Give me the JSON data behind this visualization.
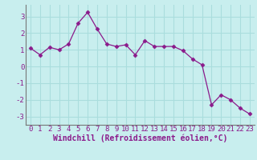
{
  "x": [
    0,
    1,
    2,
    3,
    4,
    5,
    6,
    7,
    8,
    9,
    10,
    11,
    12,
    13,
    14,
    15,
    16,
    17,
    18,
    19,
    20,
    21,
    22,
    23
  ],
  "y": [
    1.1,
    0.7,
    1.15,
    1.0,
    1.35,
    2.6,
    3.25,
    2.25,
    1.35,
    1.2,
    1.3,
    0.7,
    1.55,
    1.2,
    1.2,
    1.2,
    0.95,
    0.45,
    0.1,
    -2.3,
    -1.7,
    -2.0,
    -2.5,
    -2.85
  ],
  "line_color": "#8b1a8b",
  "marker": "D",
  "marker_size": 2.5,
  "xlabel": "Windchill (Refroidissement éolien,°C)",
  "xlim": [
    -0.5,
    23.5
  ],
  "ylim": [
    -3.5,
    3.7
  ],
  "yticks": [
    -3,
    -2,
    -1,
    0,
    1,
    2,
    3
  ],
  "xticks": [
    0,
    1,
    2,
    3,
    4,
    5,
    6,
    7,
    8,
    9,
    10,
    11,
    12,
    13,
    14,
    15,
    16,
    17,
    18,
    19,
    20,
    21,
    22,
    23
  ],
  "background_color": "#c8eeee",
  "grid_color": "#aadddd",
  "tick_color": "#8b1a8b",
  "label_color": "#8b1a8b",
  "label_fontsize": 7,
  "tick_fontsize": 6.5
}
